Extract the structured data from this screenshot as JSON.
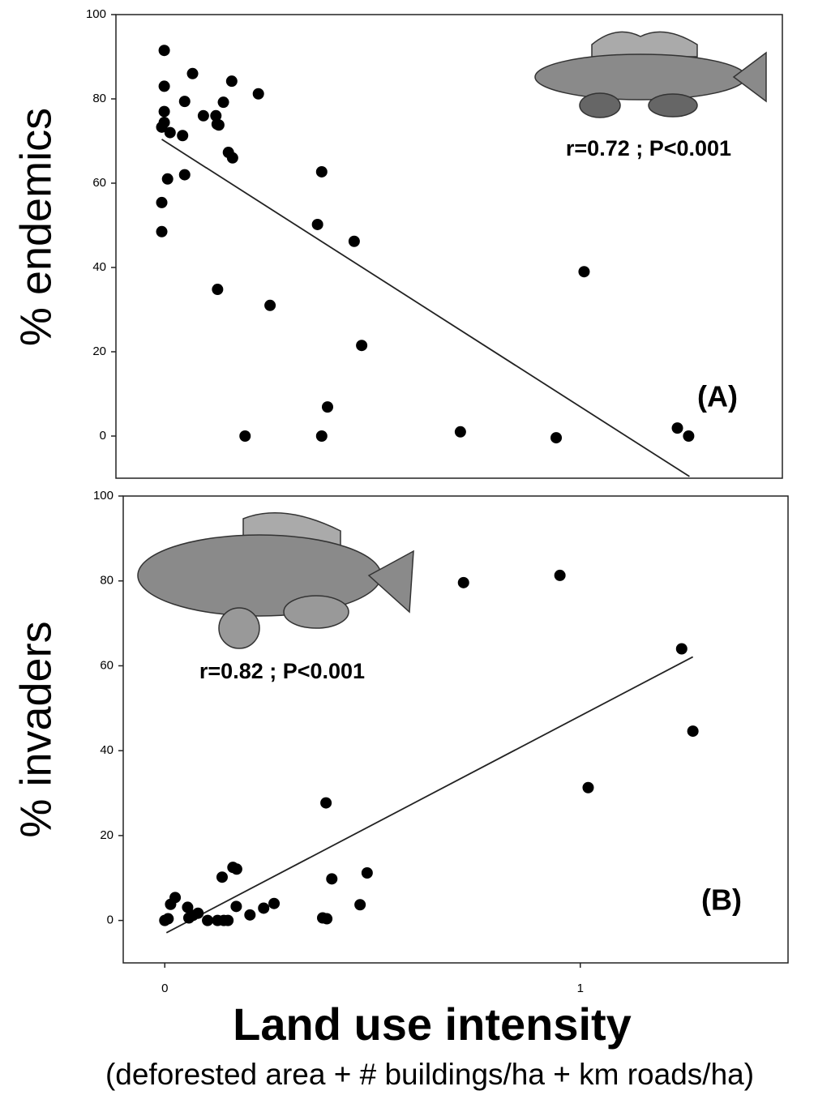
{
  "chart_data": [
    {
      "type": "scatter",
      "ylabel": "% endemics",
      "annotation": "r=0.72 ; P<0.001",
      "panel_label": "(A)",
      "color": "#000000",
      "x": [
        0.006,
        0.006,
        0.006,
        0.006,
        0,
        0.02,
        0.074,
        0.055,
        0.05,
        0.014,
        0.055,
        0,
        0,
        0.1,
        0.13,
        0.133,
        0.137,
        0.148,
        0.168,
        0.16,
        0.17,
        0.232,
        0.134,
        0.26,
        0.384,
        0.374,
        0.462,
        0.48,
        0.398,
        0.2,
        0.384,
        0.717,
        0.947,
        1.014,
        1.238,
        1.265
      ],
      "values": [
        91.5,
        83,
        77,
        74.4,
        73.3,
        72,
        86,
        79.4,
        71.3,
        61,
        62,
        55.4,
        48.5,
        76,
        76,
        74,
        73.8,
        79.2,
        84.2,
        67.3,
        66,
        81.2,
        34.8,
        31,
        62.7,
        50.2,
        46.2,
        21.5,
        6.9,
        0,
        0,
        1,
        -0.4,
        39,
        1.9,
        0
      ],
      "trendline": {
        "x": [
          0,
          1.267
        ],
        "values": [
          70.4,
          -9.6
        ]
      },
      "xlim": [
        -0.11,
        1.49
      ],
      "ylim": [
        -10,
        100
      ],
      "yticks": [
        0,
        20,
        40,
        60,
        80,
        100
      ]
    },
    {
      "type": "scatter",
      "ylabel": "% invaders",
      "annotation": "r=0.82 ; P<0.001",
      "panel_label": "(B)",
      "xlabel": "Land use intensity",
      "xlabel_note": "(deforested area + # buildings/ha + km roads/ha)",
      "color": "#000000",
      "x": [
        0.008,
        0,
        0.014,
        0.025,
        0.055,
        0.058,
        0.068,
        0.08,
        0.103,
        0.127,
        0.142,
        0.152,
        0.138,
        0.164,
        0.173,
        0.172,
        0.205,
        0.238,
        0.263,
        0.38,
        0.39,
        0.388,
        0.402,
        0.487,
        0.47,
        0.719,
        0.951,
        1.019,
        1.244,
        1.271
      ],
      "values": [
        0.4,
        0,
        3.8,
        5.4,
        3.1,
        0.6,
        1.2,
        1.7,
        0,
        0,
        0,
        0,
        10.2,
        12.5,
        12.1,
        3.3,
        1.3,
        2.9,
        4,
        0.6,
        0.4,
        27.7,
        9.8,
        11.2,
        3.7,
        79.6,
        81.3,
        31.3,
        64,
        44.6
      ],
      "trendline": {
        "x": [
          0.004,
          1.271
        ],
        "values": [
          -2.9,
          62.1
        ]
      },
      "xlim": [
        -0.1,
        1.5
      ],
      "ylim": [
        -10,
        100
      ],
      "yticks": [
        0,
        20,
        40,
        60,
        80,
        100
      ],
      "xticks": [
        0,
        1
      ]
    }
  ]
}
